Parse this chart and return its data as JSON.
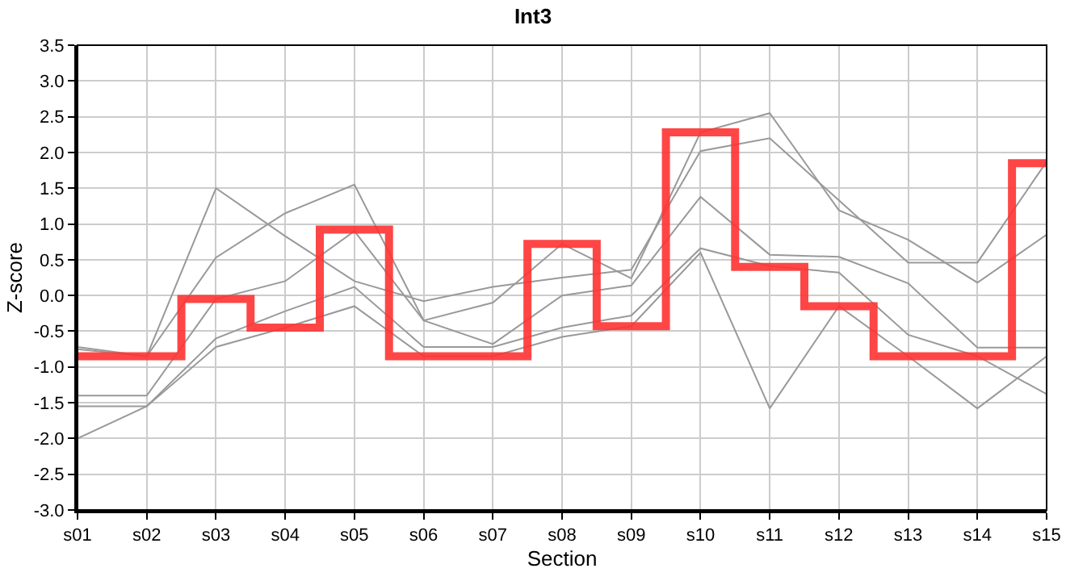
{
  "chart_data": {
    "type": "line",
    "title": "Int3",
    "xlabel": "Section",
    "ylabel": "Z-score",
    "categories": [
      "s01",
      "s02",
      "s03",
      "s04",
      "s05",
      "s06",
      "s07",
      "s08",
      "s09",
      "s10",
      "s11",
      "s12",
      "s13",
      "s14",
      "s15"
    ],
    "series": [
      {
        "color": "#999999",
        "values": [
          -0.72,
          -0.85,
          1.5,
          0.83,
          0.2,
          -0.08,
          0.12,
          0.25,
          0.36,
          2.02,
          2.2,
          1.33,
          0.46,
          0.46,
          1.87
        ]
      },
      {
        "color": "#999999",
        "values": [
          -0.75,
          -0.85,
          0.53,
          1.15,
          1.55,
          -0.35,
          -0.1,
          0.72,
          0.24,
          2.28,
          2.55,
          1.19,
          0.78,
          0.18,
          0.85
        ]
      },
      {
        "color": "#999999",
        "values": [
          -1.4,
          -1.4,
          -0.05,
          0.2,
          0.9,
          -0.35,
          -0.68,
          0.0,
          0.14,
          1.38,
          0.57,
          0.54,
          0.17,
          -0.73,
          -0.73
        ]
      },
      {
        "color": "#999999",
        "values": [
          -1.55,
          -1.55,
          -0.6,
          -0.22,
          0.12,
          -0.72,
          -0.72,
          -0.45,
          -0.28,
          0.66,
          0.41,
          0.32,
          -0.55,
          -0.85,
          -1.38
        ]
      },
      {
        "color": "#999999",
        "values": [
          -2.0,
          -1.55,
          -0.72,
          -0.45,
          -0.15,
          -0.85,
          -0.85,
          -0.58,
          -0.43,
          0.6,
          -1.58,
          -0.15,
          -0.85,
          -1.58,
          -0.85
        ]
      },
      {
        "type": "step",
        "color": "#ff3333",
        "values": [
          -0.85,
          -0.85,
          -0.05,
          -0.45,
          0.92,
          -0.85,
          -0.85,
          0.72,
          -0.43,
          2.28,
          0.4,
          -0.15,
          -0.85,
          -0.85,
          1.85
        ]
      }
    ],
    "ylim": [
      -3.0,
      3.5
    ],
    "yticks": [
      {
        "value": -3,
        "label": "-3.0"
      },
      {
        "value": -2.5,
        "label": "-2.5"
      },
      {
        "value": -2,
        "label": "-2.0"
      },
      {
        "value": -1.5,
        "label": "-1.5"
      },
      {
        "value": -1,
        "label": "-1.0"
      },
      {
        "value": -0.5,
        "label": "-0.5"
      },
      {
        "value": 0,
        "label": "0.0"
      },
      {
        "value": 0.5,
        "label": "0.5"
      },
      {
        "value": 1,
        "label": "1.0"
      },
      {
        "value": 1.5,
        "label": "1.5"
      },
      {
        "value": 2,
        "label": "2.0"
      },
      {
        "value": 2.5,
        "label": "2.5"
      },
      {
        "value": 3,
        "label": "3.0"
      },
      {
        "value": 3.5,
        "label": "3.5"
      }
    ],
    "grid": true,
    "legend": false,
    "marker": "none"
  }
}
